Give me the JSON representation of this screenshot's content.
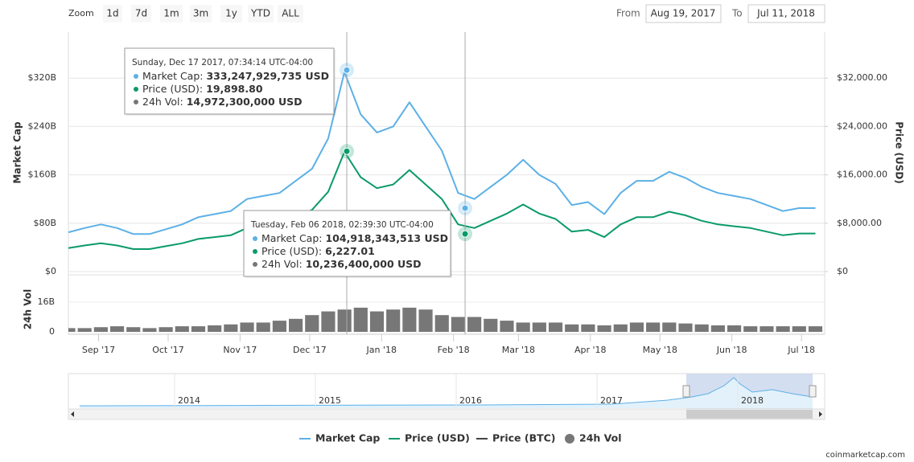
{
  "zoom": {
    "label": "Zoom",
    "buttons": [
      "1d",
      "7d",
      "1m",
      "3m",
      "1y",
      "YTD",
      "ALL"
    ]
  },
  "range": {
    "from_label": "From",
    "from": "Aug 19, 2017",
    "to_label": "To",
    "to": "Jul 11, 2018"
  },
  "chart_data": {
    "type": "line",
    "x": [
      0,
      7,
      14,
      21,
      28,
      35,
      42,
      49,
      56,
      63,
      70,
      77,
      84,
      91,
      98,
      105,
      112,
      119,
      126,
      133,
      140,
      147,
      154,
      161,
      168,
      175,
      182,
      189,
      196,
      203,
      210,
      217,
      224,
      231,
      238,
      245,
      252,
      259,
      266,
      273,
      280,
      287,
      294,
      301,
      308,
      315,
      322
    ],
    "xlim": [
      0,
      326
    ],
    "xticks": [
      {
        "value": 13,
        "label": "Sep '17"
      },
      {
        "value": 43,
        "label": "Oct '17"
      },
      {
        "value": 74,
        "label": "Nov '17"
      },
      {
        "value": 104,
        "label": "Dec '17"
      },
      {
        "value": 135,
        "label": "Jan '18"
      },
      {
        "value": 166,
        "label": "Feb '18"
      },
      {
        "value": 194,
        "label": "Mar '18"
      },
      {
        "value": 225,
        "label": "Apr '18"
      },
      {
        "value": 255,
        "label": "May '18"
      },
      {
        "value": 286,
        "label": "Jun '18"
      },
      {
        "value": 316,
        "label": "Jul '18"
      }
    ],
    "ylabel": "Market Cap",
    "y2label": "Price (USD)",
    "ylim": [
      0,
      396000000000
    ],
    "yticks": [
      {
        "value": 0,
        "label": "$0"
      },
      {
        "value": 80000000000,
        "label": "$80B"
      },
      {
        "value": 160000000000,
        "label": "$160B"
      },
      {
        "value": 240000000000,
        "label": "$240B"
      },
      {
        "value": 320000000000,
        "label": "$320B"
      }
    ],
    "y2lim": [
      0,
      39600
    ],
    "y2ticks": [
      {
        "value": 0,
        "label": "$0"
      },
      {
        "value": 8000,
        "label": "$8,000.00"
      },
      {
        "value": 16000,
        "label": "$16,000.00"
      },
      {
        "value": 24000,
        "label": "$24,000.00"
      },
      {
        "value": 32000,
        "label": "$32,000.00"
      }
    ],
    "series": [
      {
        "name": "Market Cap",
        "color": "#5cb0e6",
        "values": [
          65000000000,
          72000000000,
          78000000000,
          72000000000,
          62000000000,
          62000000000,
          70000000000,
          78000000000,
          90000000000,
          95000000000,
          100000000000,
          120000000000,
          125000000000,
          130000000000,
          150000000000,
          170000000000,
          220000000000,
          330000000000,
          260000000000,
          230000000000,
          240000000000,
          280000000000,
          240000000000,
          200000000000,
          130000000000,
          120000000000,
          140000000000,
          160000000000,
          185000000000,
          160000000000,
          145000000000,
          110000000000,
          115000000000,
          95000000000,
          130000000000,
          150000000000,
          150000000000,
          165000000000,
          155000000000,
          140000000000,
          130000000000,
          125000000000,
          120000000000,
          110000000000,
          100000000000,
          105000000000,
          105000000000
        ]
      },
      {
        "name": "Price (USD)",
        "color": "#0a9a6a",
        "axis": "y2",
        "values": [
          3900,
          4320,
          4680,
          4320,
          3720,
          3720,
          4200,
          4680,
          5400,
          5700,
          6000,
          7200,
          7500,
          7800,
          9000,
          10200,
          13200,
          19800,
          15600,
          13800,
          14400,
          16800,
          14400,
          12000,
          7800,
          7200,
          8400,
          9600,
          11100,
          9600,
          8700,
          6600,
          6900,
          5700,
          7800,
          9000,
          9000,
          9900,
          9300,
          8400,
          7800,
          7500,
          7200,
          6600,
          6000,
          6300,
          6300
        ]
      },
      {
        "name": "Price (BTC)",
        "color": "#434348"
      }
    ],
    "volume": {
      "label": "24h Vol",
      "name": "24h Vol",
      "color": "#777777",
      "ylim": [
        0,
        29400000000
      ],
      "yticks": [
        0,
        {
          "value": 16000000000,
          "label": "16B"
        }
      ],
      "values": [
        2000000000,
        2000000000,
        2500000000,
        3000000000,
        2500000000,
        2000000000,
        2500000000,
        3000000000,
        3000000000,
        3500000000,
        4000000000,
        5000000000,
        5000000000,
        6000000000,
        7000000000,
        9000000000,
        11000000000,
        12000000000,
        13000000000,
        11000000000,
        12000000000,
        13000000000,
        12000000000,
        9000000000,
        8000000000,
        8000000000,
        7000000000,
        6000000000,
        5000000000,
        5000000000,
        5000000000,
        4000000000,
        4000000000,
        3500000000,
        4000000000,
        5000000000,
        5000000000,
        5000000000,
        4500000000,
        4000000000,
        3500000000,
        3500000000,
        3000000000,
        3000000000,
        3000000000,
        3000000000,
        3000000000
      ]
    },
    "tooltips": [
      {
        "x": 120,
        "title": "Sunday, Dec 17 2017, 07:34:14 UTC-04:00",
        "entries": [
          {
            "name": "Market Cap:",
            "value": 333247929735,
            "label": "333,247,929,735 USD"
          },
          {
            "name": "Price (USD):",
            "value": 19898.8,
            "label": "19,898.80"
          },
          {
            "name": "24h Vol:",
            "value": 14972300000,
            "label": "14,972,300,000 USD"
          }
        ]
      },
      {
        "x": 171,
        "title": "Tuesday, Feb 06 2018, 02:39:30 UTC-04:00",
        "entries": [
          {
            "name": "Market Cap:",
            "value": 104918343513,
            "label": "104,918,343,513 USD"
          },
          {
            "name": "Price (USD):",
            "value": 6227.01,
            "label": "6,227.01"
          },
          {
            "name": "24h Vol:",
            "value": 10236400000,
            "label": "10,236,400,000 USD"
          }
        ]
      }
    ],
    "navigator": {
      "labels": [
        "2014",
        "2015",
        "2016",
        "2017",
        "2018"
      ]
    },
    "credit": "coinmarketcap.com"
  }
}
